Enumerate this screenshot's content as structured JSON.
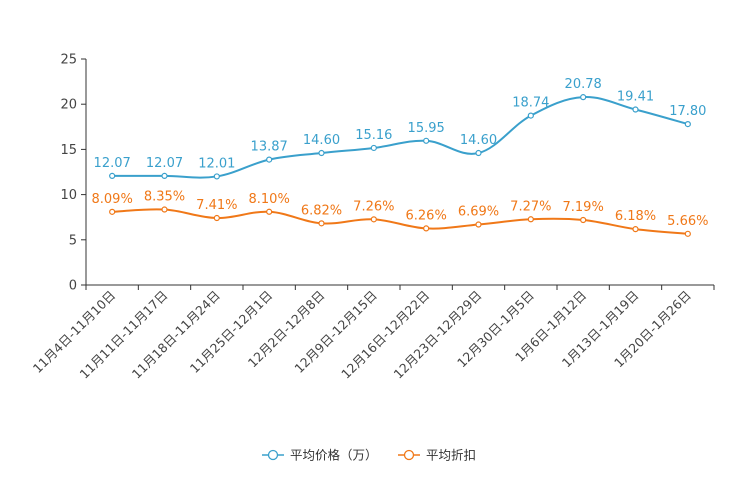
{
  "chart_data": {
    "type": "line",
    "title": "",
    "xlabel": "",
    "ylabel": "",
    "ylim": [
      0,
      25
    ],
    "yticks": [
      0,
      5,
      10,
      15,
      20,
      25
    ],
    "grid": false,
    "legend_position": "bottom-center",
    "categories": [
      "11月4日-11月10日",
      "11月11日-11月17日",
      "11月18日-11月24日",
      "11月25日-12月1日",
      "12月2日-12月8日",
      "12月9日-12月15日",
      "12月16日-12月22日",
      "12月23日-12月29日",
      "12月30日-1月5日",
      "1月6日-1月12日",
      "1月13日-1月19日",
      "1月20日-1月26日"
    ],
    "series": [
      {
        "name": "平均价格（万）",
        "color": "#3aa0cc",
        "values": [
          12.07,
          12.07,
          12.01,
          13.87,
          14.6,
          15.16,
          15.95,
          14.6,
          18.74,
          20.78,
          19.41,
          17.8
        ],
        "labels": [
          "12.07",
          "12.07",
          "12.01",
          "13.87",
          "14.60",
          "15.16",
          "15.95",
          "14.60",
          "18.74",
          "20.78",
          "19.41",
          "17.80"
        ]
      },
      {
        "name": "平均折扣",
        "color": "#f07818",
        "values": [
          8.09,
          8.35,
          7.41,
          8.1,
          6.82,
          7.26,
          6.26,
          6.69,
          7.27,
          7.19,
          6.18,
          5.66
        ],
        "labels": [
          "8.09%",
          "8.35%",
          "7.41%",
          "8.10%",
          "6.82%",
          "7.26%",
          "6.26%",
          "6.69%",
          "7.27%",
          "7.19%",
          "6.18%",
          "5.66%"
        ]
      }
    ]
  }
}
